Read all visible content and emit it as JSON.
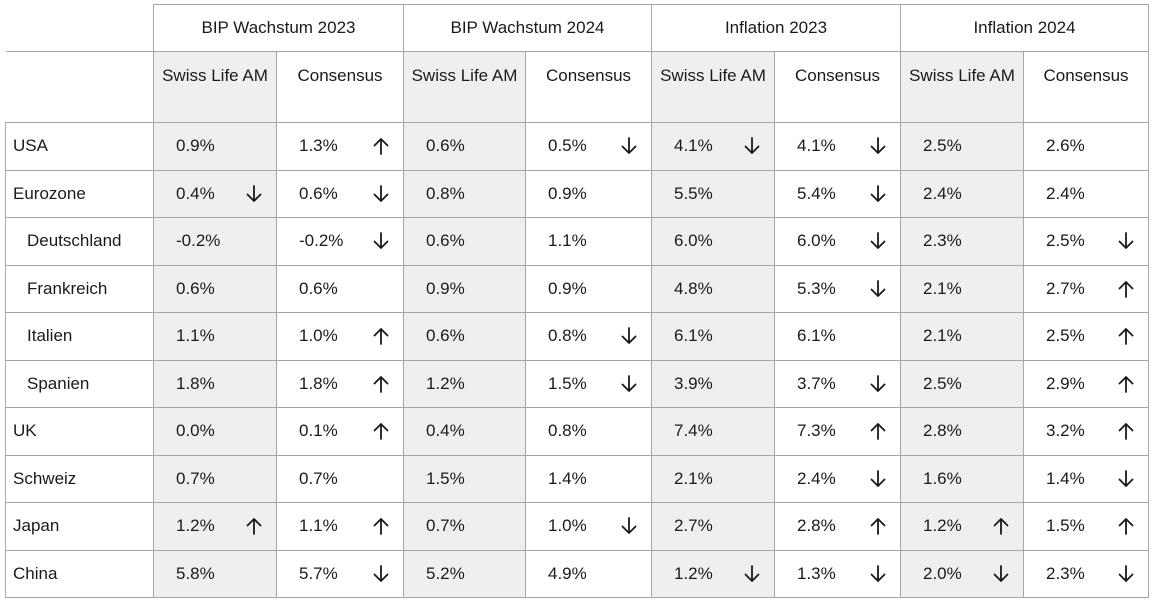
{
  "groups": [
    "BIP Wachstum 2023",
    "BIP Wachstum 2024",
    "Inflation 2023",
    "Inflation 2024"
  ],
  "subheaders": {
    "slam": "Swiss Life AM",
    "consensus": "Consensus"
  },
  "rows": [
    {
      "country": "USA",
      "indent": false,
      "cells": [
        {
          "value": "0.9%",
          "arrow": ""
        },
        {
          "value": "1.3%",
          "arrow": "up"
        },
        {
          "value": "0.6%",
          "arrow": ""
        },
        {
          "value": "0.5%",
          "arrow": "down"
        },
        {
          "value": "4.1%",
          "arrow": "down"
        },
        {
          "value": "4.1%",
          "arrow": "down"
        },
        {
          "value": "2.5%",
          "arrow": ""
        },
        {
          "value": "2.6%",
          "arrow": ""
        }
      ]
    },
    {
      "country": "Eurozone",
      "indent": false,
      "cells": [
        {
          "value": "0.4%",
          "arrow": "down"
        },
        {
          "value": "0.6%",
          "arrow": "down"
        },
        {
          "value": "0.8%",
          "arrow": ""
        },
        {
          "value": "0.9%",
          "arrow": ""
        },
        {
          "value": "5.5%",
          "arrow": ""
        },
        {
          "value": "5.4%",
          "arrow": "down"
        },
        {
          "value": "2.4%",
          "arrow": ""
        },
        {
          "value": "2.4%",
          "arrow": ""
        }
      ]
    },
    {
      "country": "Deutschland",
      "indent": true,
      "cells": [
        {
          "value": "-0.2%",
          "arrow": ""
        },
        {
          "value": "-0.2%",
          "arrow": "down"
        },
        {
          "value": "0.6%",
          "arrow": ""
        },
        {
          "value": "1.1%",
          "arrow": ""
        },
        {
          "value": "6.0%",
          "arrow": ""
        },
        {
          "value": "6.0%",
          "arrow": "down"
        },
        {
          "value": "2.3%",
          "arrow": ""
        },
        {
          "value": "2.5%",
          "arrow": "down"
        }
      ]
    },
    {
      "country": "Frankreich",
      "indent": true,
      "cells": [
        {
          "value": "0.6%",
          "arrow": ""
        },
        {
          "value": "0.6%",
          "arrow": ""
        },
        {
          "value": "0.9%",
          "arrow": ""
        },
        {
          "value": "0.9%",
          "arrow": ""
        },
        {
          "value": "4.8%",
          "arrow": ""
        },
        {
          "value": "5.3%",
          "arrow": "down"
        },
        {
          "value": "2.1%",
          "arrow": ""
        },
        {
          "value": "2.7%",
          "arrow": "up"
        }
      ]
    },
    {
      "country": "Italien",
      "indent": true,
      "cells": [
        {
          "value": "1.1%",
          "arrow": ""
        },
        {
          "value": "1.0%",
          "arrow": "up"
        },
        {
          "value": "0.6%",
          "arrow": ""
        },
        {
          "value": "0.8%",
          "arrow": "down"
        },
        {
          "value": "6.1%",
          "arrow": ""
        },
        {
          "value": "6.1%",
          "arrow": ""
        },
        {
          "value": "2.1%",
          "arrow": ""
        },
        {
          "value": "2.5%",
          "arrow": "up"
        }
      ]
    },
    {
      "country": "Spanien",
      "indent": true,
      "cells": [
        {
          "value": "1.8%",
          "arrow": ""
        },
        {
          "value": "1.8%",
          "arrow": "up"
        },
        {
          "value": "1.2%",
          "arrow": ""
        },
        {
          "value": "1.5%",
          "arrow": "down"
        },
        {
          "value": "3.9%",
          "arrow": ""
        },
        {
          "value": "3.7%",
          "arrow": "down"
        },
        {
          "value": "2.5%",
          "arrow": ""
        },
        {
          "value": "2.9%",
          "arrow": "up"
        }
      ]
    },
    {
      "country": "UK",
      "indent": false,
      "cells": [
        {
          "value": "0.0%",
          "arrow": ""
        },
        {
          "value": "0.1%",
          "arrow": "up"
        },
        {
          "value": "0.4%",
          "arrow": ""
        },
        {
          "value": "0.8%",
          "arrow": ""
        },
        {
          "value": "7.4%",
          "arrow": ""
        },
        {
          "value": "7.3%",
          "arrow": "up"
        },
        {
          "value": "2.8%",
          "arrow": ""
        },
        {
          "value": "3.2%",
          "arrow": "up"
        }
      ]
    },
    {
      "country": "Schweiz",
      "indent": false,
      "cells": [
        {
          "value": "0.7%",
          "arrow": ""
        },
        {
          "value": "0.7%",
          "arrow": ""
        },
        {
          "value": "1.5%",
          "arrow": ""
        },
        {
          "value": "1.4%",
          "arrow": ""
        },
        {
          "value": "2.1%",
          "arrow": ""
        },
        {
          "value": "2.4%",
          "arrow": "down"
        },
        {
          "value": "1.6%",
          "arrow": ""
        },
        {
          "value": "1.4%",
          "arrow": "down"
        }
      ]
    },
    {
      "country": "Japan",
      "indent": false,
      "cells": [
        {
          "value": "1.2%",
          "arrow": "up"
        },
        {
          "value": "1.1%",
          "arrow": "up"
        },
        {
          "value": "0.7%",
          "arrow": ""
        },
        {
          "value": "1.0%",
          "arrow": "down"
        },
        {
          "value": "2.7%",
          "arrow": ""
        },
        {
          "value": "2.8%",
          "arrow": "up"
        },
        {
          "value": "1.2%",
          "arrow": "up"
        },
        {
          "value": "1.5%",
          "arrow": "up"
        }
      ]
    },
    {
      "country": "China",
      "indent": false,
      "cells": [
        {
          "value": "5.8%",
          "arrow": ""
        },
        {
          "value": "5.7%",
          "arrow": "down"
        },
        {
          "value": "5.2%",
          "arrow": ""
        },
        {
          "value": "4.9%",
          "arrow": ""
        },
        {
          "value": "1.2%",
          "arrow": "down"
        },
        {
          "value": "1.3%",
          "arrow": "down"
        },
        {
          "value": "2.0%",
          "arrow": "down"
        },
        {
          "value": "2.3%",
          "arrow": "down"
        }
      ]
    }
  ],
  "icons": {
    "up": "arrow-up-icon",
    "down": "arrow-down-icon"
  },
  "colors": {
    "shade": "#efefef",
    "border": "#a6a6a6",
    "text": "#1a1a1a"
  }
}
